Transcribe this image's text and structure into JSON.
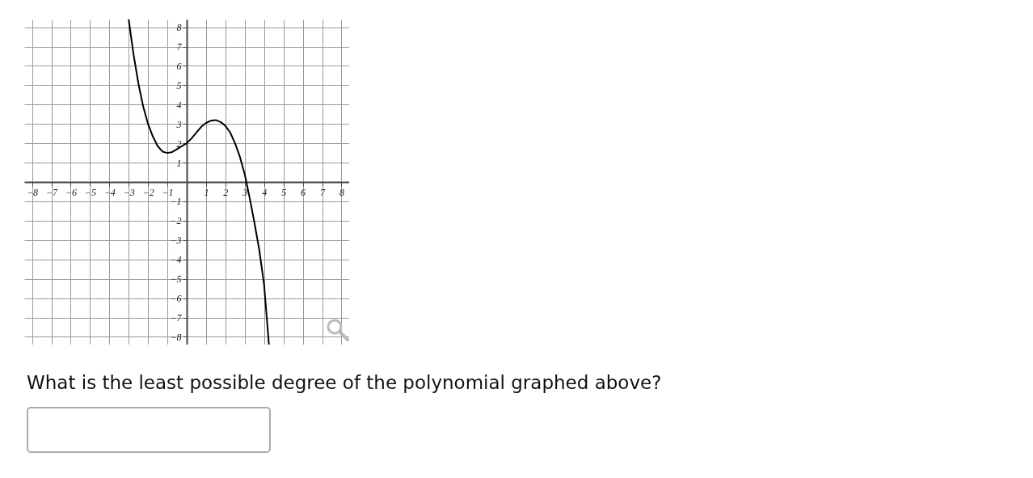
{
  "chart_data": {
    "type": "line",
    "x": [
      -3,
      -2.75,
      -2.5,
      -2.25,
      -2,
      -1.75,
      -1.5,
      -1.25,
      -1,
      -0.75,
      -0.5,
      -0.25,
      0,
      0.25,
      0.5,
      0.75,
      1,
      1.25,
      1.5,
      1.75,
      2,
      2.25,
      2.5,
      2.75,
      3,
      3.25,
      3.5,
      3.75,
      4,
      4.25
    ],
    "series": [
      {
        "color": "#000000",
        "values": [
          8.4,
          6.6,
          5.1,
          3.9,
          3.0,
          2.35,
          1.85,
          1.57,
          1.5,
          1.55,
          1.7,
          1.85,
          2.0,
          2.25,
          2.55,
          2.85,
          3.05,
          3.17,
          3.2,
          3.1,
          2.9,
          2.55,
          2.0,
          1.3,
          0.4,
          -0.8,
          -2.1,
          -3.5,
          -5.3,
          -8.4
        ]
      }
    ],
    "xlim": [
      -8.4,
      8.4
    ],
    "ylim": [
      -8.4,
      8.4
    ],
    "xticks": [
      -8,
      -7,
      -6,
      -5,
      -4,
      -3,
      -2,
      -1,
      1,
      2,
      3,
      4,
      5,
      6,
      7,
      8
    ],
    "yticks": [
      -8,
      -7,
      -6,
      -5,
      -4,
      -3,
      -2,
      -1,
      1,
      2,
      3,
      4,
      5,
      6,
      7,
      8
    ],
    "grid": true,
    "marker": "none",
    "line_style": "solid",
    "annotations": [
      "What is the least possible degree of the polynomial graphed above?"
    ]
  }
}
